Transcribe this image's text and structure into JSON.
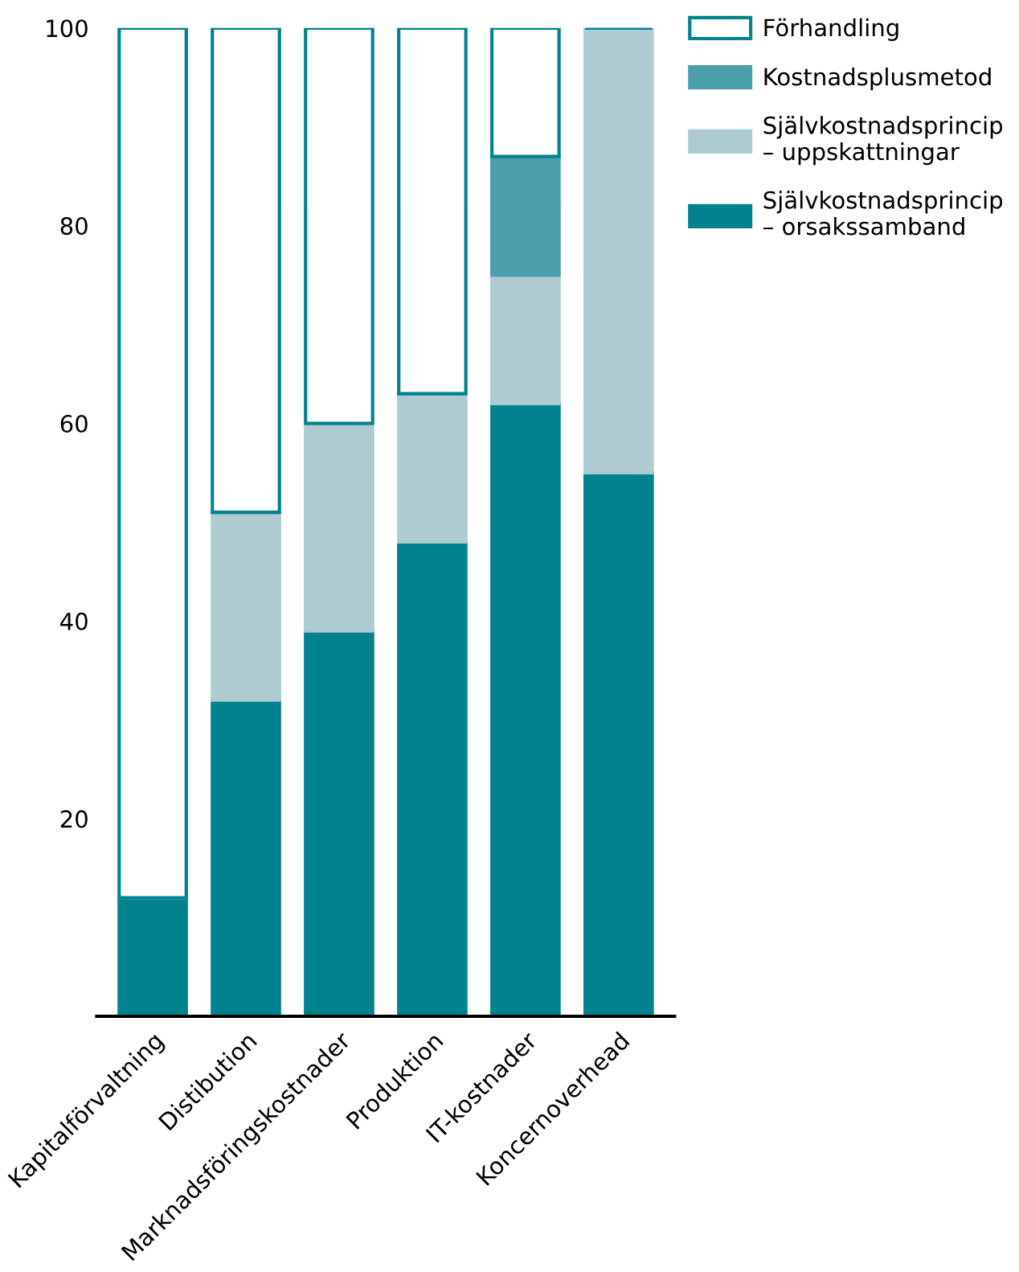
{
  "chart_data": {
    "type": "bar",
    "stacked": true,
    "categories": [
      "Kapitalförvaltning",
      "Distibution",
      "Marknadsföringskostnader",
      "Produktion",
      "IT-kostnader",
      "Koncernoverhead"
    ],
    "series": [
      {
        "name": "Självkostnadsprincip\n– orsakssamband",
        "color": "#00838f",
        "values": [
          12,
          32,
          39,
          48,
          62,
          55
        ]
      },
      {
        "name": "Självkostnadsprincip\n– uppskattningar",
        "color": "#aecbd1",
        "values": [
          0,
          19,
          21,
          15,
          13,
          45
        ]
      },
      {
        "name": "Kostnadsplusmetod",
        "color": "#4a9faa",
        "values": [
          0,
          0,
          0,
          0,
          12,
          0
        ]
      },
      {
        "name": "Förhandling",
        "color": "#ffffff",
        "values": [
          88,
          49,
          40,
          37,
          13,
          0
        ]
      }
    ],
    "ylim": [
      0,
      100
    ],
    "yticks": [
      20,
      40,
      60,
      80,
      100
    ],
    "grid": false,
    "legend": "top right"
  }
}
